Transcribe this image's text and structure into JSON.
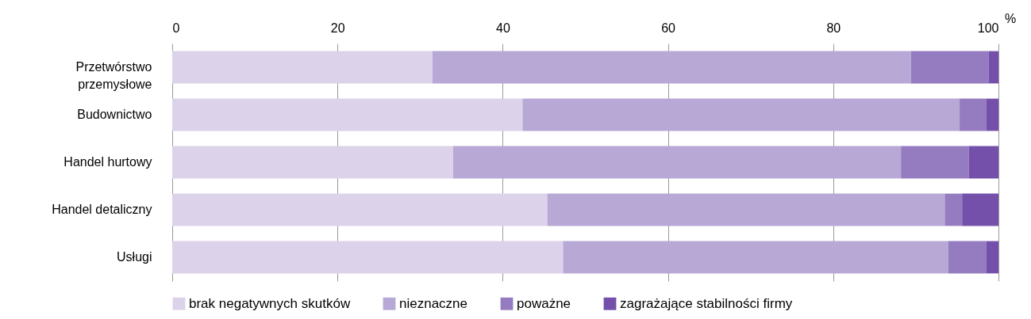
{
  "chart_data": {
    "type": "bar",
    "orientation": "horizontal",
    "stacked": true,
    "categories": [
      "Przetwórstwo przemysłowe",
      "Budownictwo",
      "Handel hurtowy",
      "Handel detaliczny",
      "Usługi"
    ],
    "series": [
      {
        "name": "brak negatywnych skutków",
        "color": "#dcd3ea",
        "values": [
          31.5,
          42.4,
          34.0,
          45.4,
          47.3
        ]
      },
      {
        "name": "nieznaczne",
        "color": "#b8a8d5",
        "values": [
          57.9,
          52.9,
          54.2,
          48.1,
          46.6
        ]
      },
      {
        "name": "poważne",
        "color": "#957cc0",
        "values": [
          9.4,
          3.2,
          8.2,
          2.1,
          4.6
        ]
      },
      {
        "name": "zagrażające stabilności firmy",
        "color": "#7450ab",
        "values": [
          1.2,
          1.5,
          3.6,
          4.4,
          1.5
        ]
      }
    ],
    "xlabel": "%",
    "xlim": [
      0,
      100
    ],
    "xticks": [
      0,
      20,
      40,
      60,
      80,
      100
    ],
    "grid": "x",
    "legend": "bottom"
  }
}
